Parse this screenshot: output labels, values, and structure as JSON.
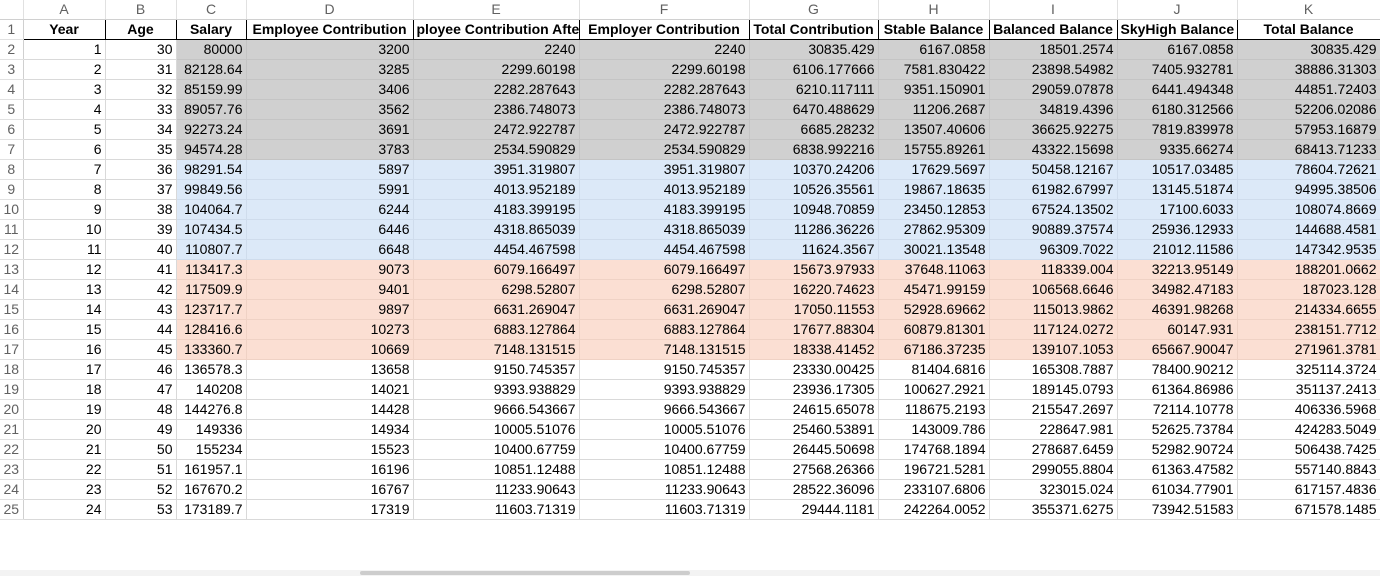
{
  "columns": [
    "A",
    "B",
    "C",
    "D",
    "E",
    "F",
    "G",
    "H",
    "I",
    "J",
    "K"
  ],
  "headers": [
    "Year",
    "Age",
    "Salary",
    "Employee Contribution",
    "ployee Contribution After",
    "Employer Contribution",
    "Total Contribution",
    "Stable Balance",
    "Balanced Balance",
    "SkyHigh Balance",
    "Total Balance"
  ],
  "rows": [
    {
      "n": "2",
      "band": "gray",
      "cells": [
        "1",
        "30",
        "80000",
        "3200",
        "2240",
        "2240",
        "30835.429",
        "6167.0858",
        "18501.2574",
        "6167.0858",
        "30835.429"
      ]
    },
    {
      "n": "3",
      "band": "gray",
      "cells": [
        "2",
        "31",
        "82128.64",
        "3285",
        "2299.60198",
        "2299.60198",
        "6106.177666",
        "7581.830422",
        "23898.54982",
        "7405.932781",
        "38886.31303"
      ]
    },
    {
      "n": "4",
      "band": "gray",
      "cells": [
        "3",
        "32",
        "85159.99",
        "3406",
        "2282.287643",
        "2282.287643",
        "6210.117111",
        "9351.150901",
        "29059.07878",
        "6441.494348",
        "44851.72403"
      ]
    },
    {
      "n": "5",
      "band": "gray",
      "cells": [
        "4",
        "33",
        "89057.76",
        "3562",
        "2386.748073",
        "2386.748073",
        "6470.488629",
        "11206.2687",
        "34819.4396",
        "6180.312566",
        "52206.02086"
      ]
    },
    {
      "n": "6",
      "band": "gray",
      "cells": [
        "5",
        "34",
        "92273.24",
        "3691",
        "2472.922787",
        "2472.922787",
        "6685.28232",
        "13507.40606",
        "36625.92275",
        "7819.839978",
        "57953.16879"
      ]
    },
    {
      "n": "7",
      "band": "gray",
      "cells": [
        "6",
        "35",
        "94574.28",
        "3783",
        "2534.590829",
        "2534.590829",
        "6838.992216",
        "15755.89261",
        "43322.15698",
        "9335.66274",
        "68413.71233"
      ]
    },
    {
      "n": "8",
      "band": "blue",
      "cells": [
        "7",
        "36",
        "98291.54",
        "5897",
        "3951.319807",
        "3951.319807",
        "10370.24206",
        "17629.5697",
        "50458.12167",
        "10517.03485",
        "78604.72621"
      ]
    },
    {
      "n": "9",
      "band": "blue",
      "cells": [
        "8",
        "37",
        "99849.56",
        "5991",
        "4013.952189",
        "4013.952189",
        "10526.35561",
        "19867.18635",
        "61982.67997",
        "13145.51874",
        "94995.38506"
      ]
    },
    {
      "n": "10",
      "band": "blue",
      "cells": [
        "9",
        "38",
        "104064.7",
        "6244",
        "4183.399195",
        "4183.399195",
        "10948.70859",
        "23450.12853",
        "67524.13502",
        "17100.6033",
        "108074.8669"
      ]
    },
    {
      "n": "11",
      "band": "blue",
      "cells": [
        "10",
        "39",
        "107434.5",
        "6446",
        "4318.865039",
        "4318.865039",
        "11286.36226",
        "27862.95309",
        "90889.37574",
        "25936.12933",
        "144688.4581"
      ]
    },
    {
      "n": "12",
      "band": "blue",
      "cells": [
        "11",
        "40",
        "110807.7",
        "6648",
        "4454.467598",
        "4454.467598",
        "11624.3567",
        "30021.13548",
        "96309.7022",
        "21012.11586",
        "147342.9535"
      ]
    },
    {
      "n": "13",
      "band": "peach",
      "cells": [
        "12",
        "41",
        "113417.3",
        "9073",
        "6079.166497",
        "6079.166497",
        "15673.97933",
        "37648.11063",
        "118339.004",
        "32213.95149",
        "188201.0662"
      ]
    },
    {
      "n": "14",
      "band": "peach",
      "cells": [
        "13",
        "42",
        "117509.9",
        "9401",
        "6298.52807",
        "6298.52807",
        "16220.74623",
        "45471.99159",
        "106568.6646",
        "34982.47183",
        "187023.128"
      ]
    },
    {
      "n": "15",
      "band": "peach",
      "cells": [
        "14",
        "43",
        "123717.7",
        "9897",
        "6631.269047",
        "6631.269047",
        "17050.11553",
        "52928.69662",
        "115013.9862",
        "46391.98268",
        "214334.6655"
      ]
    },
    {
      "n": "16",
      "band": "peach",
      "cells": [
        "15",
        "44",
        "128416.6",
        "10273",
        "6883.127864",
        "6883.127864",
        "17677.88304",
        "60879.81301",
        "117124.0272",
        "60147.931",
        "238151.7712"
      ]
    },
    {
      "n": "17",
      "band": "peach",
      "cells": [
        "16",
        "45",
        "133360.7",
        "10669",
        "7148.131515",
        "7148.131515",
        "18338.41452",
        "67186.37235",
        "139107.1053",
        "65667.90047",
        "271961.3781"
      ]
    },
    {
      "n": "18",
      "band": "none",
      "cells": [
        "17",
        "46",
        "136578.3",
        "13658",
        "9150.745357",
        "9150.745357",
        "23330.00425",
        "81404.6816",
        "165308.7887",
        "78400.90212",
        "325114.3724"
      ]
    },
    {
      "n": "19",
      "band": "none",
      "cells": [
        "18",
        "47",
        "140208",
        "14021",
        "9393.938829",
        "9393.938829",
        "23936.17305",
        "100627.2921",
        "189145.0793",
        "61364.86986",
        "351137.2413"
      ]
    },
    {
      "n": "20",
      "band": "none",
      "cells": [
        "19",
        "48",
        "144276.8",
        "14428",
        "9666.543667",
        "9666.543667",
        "24615.65078",
        "118675.2193",
        "215547.2697",
        "72114.10778",
        "406336.5968"
      ]
    },
    {
      "n": "21",
      "band": "none",
      "cells": [
        "20",
        "49",
        "149336",
        "14934",
        "10005.51076",
        "10005.51076",
        "25460.53891",
        "143009.786",
        "228647.981",
        "52625.73784",
        "424283.5049"
      ]
    },
    {
      "n": "22",
      "band": "none",
      "cells": [
        "21",
        "50",
        "155234",
        "15523",
        "10400.67759",
        "10400.67759",
        "26445.50698",
        "174768.1894",
        "278687.6459",
        "52982.90724",
        "506438.7425"
      ]
    },
    {
      "n": "23",
      "band": "none",
      "cells": [
        "22",
        "51",
        "161957.1",
        "16196",
        "10851.12488",
        "10851.12488",
        "27568.26366",
        "196721.5281",
        "299055.8804",
        "61363.47582",
        "557140.8843"
      ]
    },
    {
      "n": "24",
      "band": "none",
      "cells": [
        "23",
        "52",
        "167670.2",
        "16767",
        "11233.90643",
        "11233.90643",
        "28522.36096",
        "233107.6806",
        "323015.024",
        "61034.77901",
        "617157.4836"
      ]
    },
    {
      "n": "25",
      "band": "none",
      "cells": [
        "24",
        "53",
        "173189.7",
        "17319",
        "11603.71319",
        "11603.71319",
        "29444.1181",
        "242264.0052",
        "355371.6275",
        "73942.51583",
        "671578.1485"
      ]
    }
  ]
}
